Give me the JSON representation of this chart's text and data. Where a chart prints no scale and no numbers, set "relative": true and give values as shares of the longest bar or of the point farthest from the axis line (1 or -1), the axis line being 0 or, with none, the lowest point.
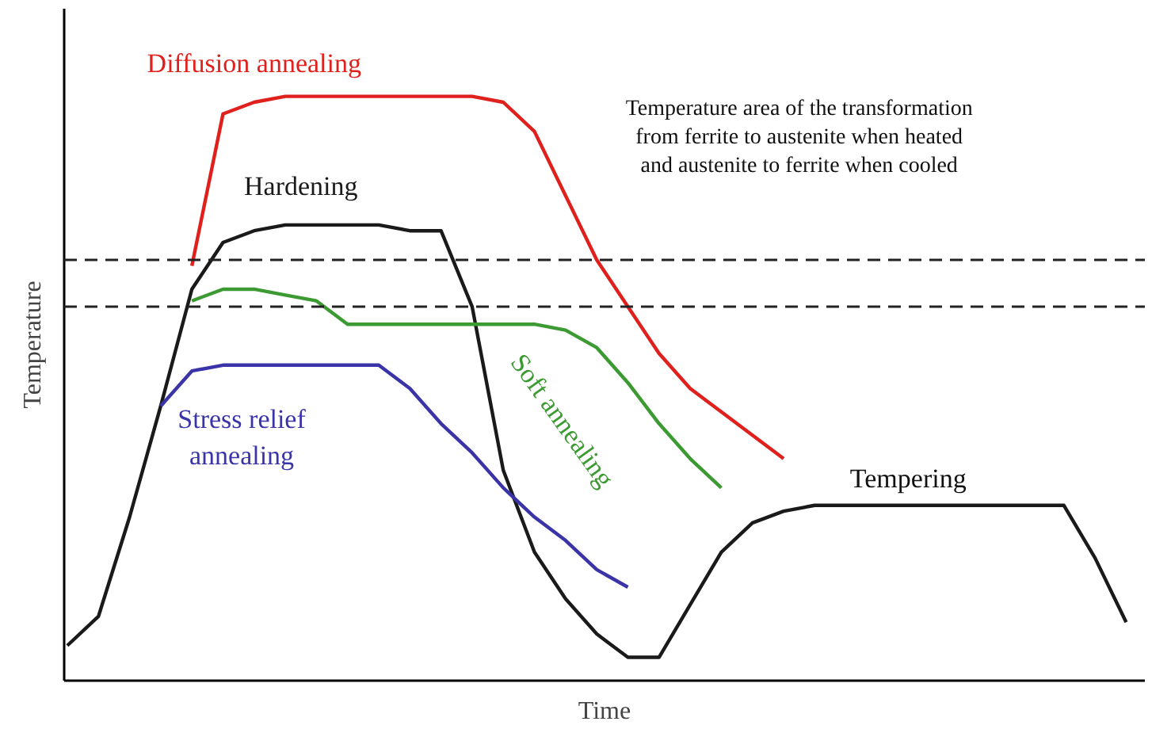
{
  "chart_data": {
    "type": "line",
    "relative": true,
    "xlabel": "Time",
    "ylabel": "Temperature",
    "categories": [
      null,
      null,
      null,
      null,
      null,
      null,
      null,
      null,
      null,
      null,
      null,
      null,
      null,
      null,
      null,
      null,
      null,
      null,
      null,
      null,
      null,
      null,
      null,
      null,
      null,
      null,
      null,
      null,
      null,
      null,
      null,
      null,
      null,
      null,
      null
    ],
    "series": [
      {
        "name": "Hardening",
        "color": "#1a1a1a",
        "values": [
          0.06,
          0.11,
          0.28,
          0.47,
          0.67,
          0.75,
          0.77,
          0.78,
          0.78,
          0.78,
          0.78,
          0.77,
          0.77,
          0.64,
          0.36,
          0.22,
          0.14,
          0.08,
          0.04,
          0.04,
          0.13,
          0.22,
          0.27,
          0.29,
          0.3,
          0.3,
          0.3,
          0.3,
          0.3,
          0.3,
          0.3,
          0.3,
          0.3,
          0.21,
          0.1
        ]
      },
      {
        "name": "Diffusion annealing",
        "color": "#e0201c",
        "values": [
          null,
          null,
          null,
          null,
          0.71,
          0.97,
          0.99,
          1,
          1,
          1,
          1,
          1,
          1,
          1,
          0.99,
          0.94,
          0.83,
          0.72,
          0.64,
          0.56,
          0.5,
          0.46,
          0.42,
          0.38,
          null,
          null,
          null,
          null,
          null,
          null,
          null,
          null,
          null,
          null,
          null
        ]
      },
      {
        "name": "Soft annealing",
        "color": "#3c9a32",
        "values": [
          null,
          null,
          null,
          null,
          0.65,
          0.67,
          0.67,
          0.66,
          0.65,
          0.61,
          0.61,
          0.61,
          0.61,
          0.61,
          0.61,
          0.61,
          0.6,
          0.57,
          0.51,
          0.44,
          0.38,
          0.33,
          null,
          null,
          null,
          null,
          null,
          null,
          null,
          null,
          null,
          null,
          null,
          null,
          null
        ]
      },
      {
        "name": "Stress relief annealing",
        "color": "#3a34a8",
        "values": [
          null,
          null,
          null,
          0.47,
          0.53,
          0.54,
          0.54,
          0.54,
          0.54,
          0.54,
          0.54,
          0.5,
          0.44,
          0.39,
          0.33,
          0.28,
          0.24,
          0.19,
          0.16,
          null,
          null,
          null,
          null,
          null,
          null,
          null,
          null,
          null,
          null,
          null,
          null,
          null,
          null,
          null,
          null
        ]
      }
    ],
    "ref_lines": [
      {
        "axis": "y",
        "value": 0.72,
        "label": null,
        "line_style": "dashed"
      },
      {
        "axis": "y",
        "value": 0.64,
        "label": null,
        "line_style": "dashed"
      }
    ],
    "annotations": [
      "Temperature area of the transformation\nfrom ferrite to austenite when heated\nand austenite to ferrite when cooled",
      "Tempering"
    ]
  }
}
